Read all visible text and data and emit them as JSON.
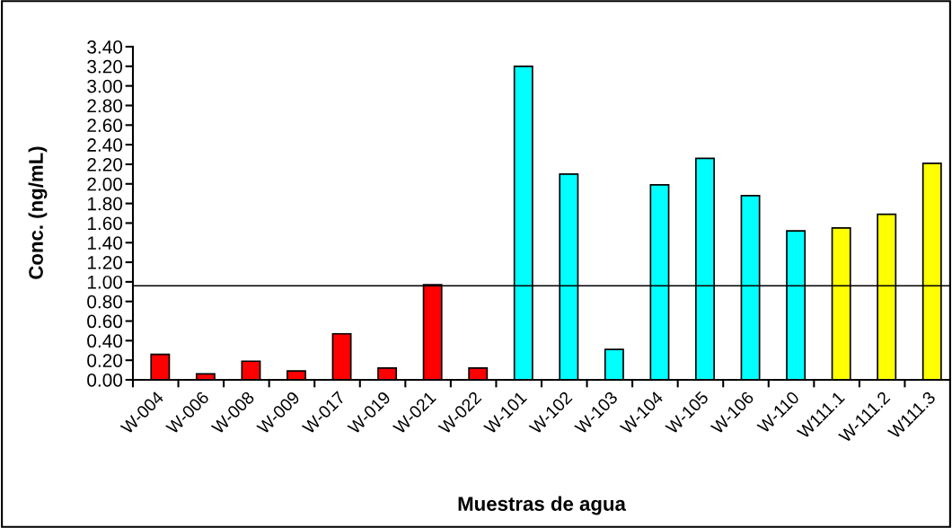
{
  "chart_data": {
    "type": "bar",
    "xlabel": "Muestras de agua",
    "ylabel": "Conc. (ng/mL)",
    "categories": [
      "W-004",
      "W-006",
      "W-008",
      "W-009",
      "W-017",
      "W-019",
      "W-021",
      "W-022",
      "W-101",
      "W-102",
      "W-103",
      "W-104",
      "W-105",
      "W-106",
      "W-110",
      "W111.1",
      "W-111.2",
      "W111.3"
    ],
    "values": [
      0.26,
      0.06,
      0.19,
      0.09,
      0.47,
      0.12,
      0.97,
      0.12,
      3.2,
      2.1,
      0.31,
      1.99,
      2.26,
      1.88,
      1.52,
      1.55,
      1.69,
      2.21
    ],
    "colors": [
      "#ff0000",
      "#ff0000",
      "#ff0000",
      "#ff0000",
      "#ff0000",
      "#ff0000",
      "#ff0000",
      "#ff0000",
      "#00ffff",
      "#00ffff",
      "#00ffff",
      "#00ffff",
      "#00ffff",
      "#00ffff",
      "#00ffff",
      "#ffff00",
      "#ffff00",
      "#ffff00"
    ],
    "ylim": [
      0,
      3.4
    ],
    "yticks": [
      {
        "value": 0,
        "label": "0.00"
      },
      {
        "value": 0.2,
        "label": "0.20"
      },
      {
        "value": 0.4,
        "label": "0.40"
      },
      {
        "value": 0.6,
        "label": "0.60"
      },
      {
        "value": 0.8,
        "label": "0.80"
      },
      {
        "value": 1.0,
        "label": "1.00"
      },
      {
        "value": 1.2,
        "label": "1.20"
      },
      {
        "value": 1.4,
        "label": "1.40"
      },
      {
        "value": 1.6,
        "label": "1.60"
      },
      {
        "value": 1.8,
        "label": "1.80"
      },
      {
        "value": 2.0,
        "label": "2.00"
      },
      {
        "value": 2.2,
        "label": "2.20"
      },
      {
        "value": 2.4,
        "label": "2.40"
      },
      {
        "value": 2.6,
        "label": "2.60"
      },
      {
        "value": 2.8,
        "label": "2.80"
      },
      {
        "value": 3.0,
        "label": "3.00"
      },
      {
        "value": 3.2,
        "label": "3.20"
      },
      {
        "value": 3.4,
        "label": "3.40"
      }
    ],
    "ref_lines": [
      {
        "axis": "y",
        "value": 0.96,
        "color": "#000000"
      }
    ],
    "grid": false,
    "legend": false
  }
}
